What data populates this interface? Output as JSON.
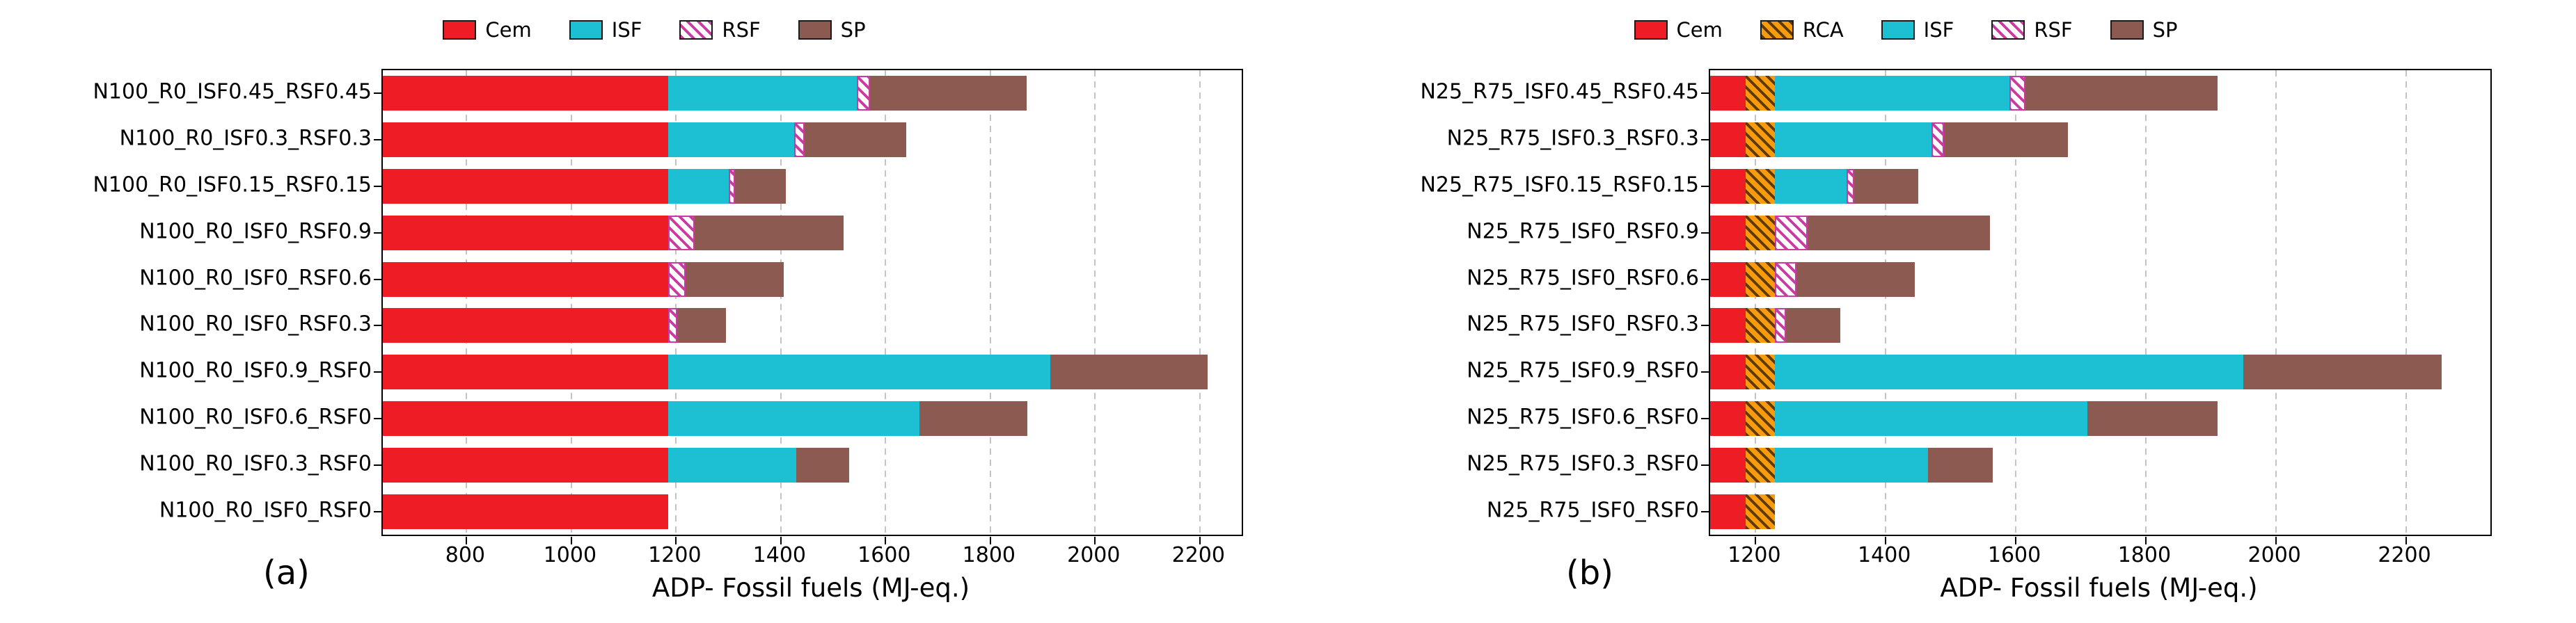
{
  "figure": {
    "background": "#ffffff"
  },
  "chart_data": [
    {
      "type": "bar",
      "orientation": "horizontal",
      "panel_label": "(a)",
      "xlabel": "ADP- Fossil fuels (MJ-eq.)",
      "xlim": [
        640,
        2280
      ],
      "x_ticks": [
        800,
        1000,
        1200,
        1400,
        1600,
        1800,
        2000,
        2200
      ],
      "grid": "dashed vertical gridlines at ticks",
      "legend_position": "top center, horizontal, no frame",
      "legend_entries": [
        "Cem",
        "ISF",
        "RSF",
        "SP"
      ],
      "categories": [
        "N100_R0_ISF0.45_RSF0.45",
        "N100_R0_ISF0.3_RSF0.3",
        "N100_R0_ISF0.15_RSF0.15",
        "N100_R0_ISF0_RSF0.9",
        "N100_R0_ISF0_RSF0.6",
        "N100_R0_ISF0_RSF0.3",
        "N100_R0_ISF0.9_RSF0",
        "N100_R0_ISF0.6_RSF0",
        "N100_R0_ISF0.3_RSF0",
        "N100_R0_ISF0_RSF0"
      ],
      "series": [
        {
          "name": "Cem",
          "values": [
            1185,
            1185,
            1185,
            1185,
            1185,
            1185,
            1185,
            1185,
            1185,
            1185
          ]
        },
        {
          "name": "ISF",
          "values": [
            360,
            240,
            115,
            0,
            0,
            0,
            730,
            480,
            245,
            0
          ]
        },
        {
          "name": "RSF",
          "values": [
            25,
            20,
            12,
            50,
            33,
            17,
            0,
            0,
            0,
            0
          ]
        },
        {
          "name": "SP",
          "values": [
            300,
            195,
            98,
            285,
            187,
            93,
            300,
            205,
            100,
            0
          ]
        }
      ]
    },
    {
      "type": "bar",
      "orientation": "horizontal",
      "panel_label": "(b)",
      "xlabel": "ADP- Fossil fuels (MJ-eq.)",
      "xlim": [
        1130,
        2330
      ],
      "x_ticks": [
        1200,
        1400,
        1600,
        1800,
        2000,
        2200
      ],
      "grid": "dashed vertical gridlines at ticks",
      "legend_position": "top center, horizontal, no frame",
      "legend_entries": [
        "Cem",
        "RCA",
        "ISF",
        "RSF",
        "SP"
      ],
      "categories": [
        "N25_R75_ISF0.45_RSF0.45",
        "N25_R75_ISF0.3_RSF0.3",
        "N25_R75_ISF0.15_RSF0.15",
        "N25_R75_ISF0_RSF0.9",
        "N25_R75_ISF0_RSF0.6",
        "N25_R75_ISF0_RSF0.3",
        "N25_R75_ISF0.9_RSF0",
        "N25_R75_ISF0.6_RSF0",
        "N25_R75_ISF0.3_RSF0",
        "N25_R75_ISF0_RSF0"
      ],
      "series": [
        {
          "name": "Cem",
          "values": [
            1185,
            1185,
            1185,
            1185,
            1185,
            1185,
            1185,
            1185,
            1185,
            1185
          ]
        },
        {
          "name": "RCA",
          "values": [
            45,
            45,
            45,
            45,
            45,
            45,
            45,
            45,
            45,
            45
          ]
        },
        {
          "name": "ISF",
          "values": [
            360,
            240,
            110,
            0,
            0,
            0,
            720,
            480,
            235,
            0
          ]
        },
        {
          "name": "RSF",
          "values": [
            25,
            20,
            12,
            50,
            33,
            17,
            0,
            0,
            0,
            0
          ]
        },
        {
          "name": "SP",
          "values": [
            295,
            190,
            98,
            280,
            182,
            83,
            305,
            200,
            100,
            0
          ]
        }
      ]
    }
  ],
  "styles": {
    "axis_color": "#000000",
    "grid_color": "#c4c4c4",
    "series": {
      "Cem": {
        "fill": "#ee1c24"
      },
      "RCA": {
        "fill": "#f89c0e",
        "hatch": "#5f3a00"
      },
      "ISF": {
        "fill": "#1cc0d2"
      },
      "RSF": {
        "fill": "#ffffff",
        "hatch": "#cb3aa2",
        "edge": "#cb3aa2"
      },
      "SP": {
        "fill": "#8c5a50"
      }
    }
  }
}
